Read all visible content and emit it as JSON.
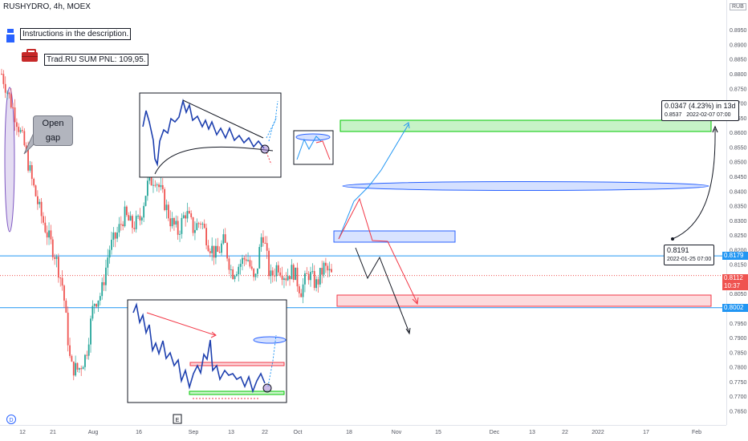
{
  "header": {
    "symbol_line": "RUSHYDRO, 4h, MOEX"
  },
  "axis": {
    "currency": "RUB"
  },
  "info": {
    "instructions": "Instructions in the description.",
    "pnl": "Trad.RU SUM PNL: 109,95."
  },
  "annotations": {
    "open_gap": "Open gap",
    "measure_line1": "0.0347 (4.23%) in 13d",
    "measure_line2_price": "0.8537",
    "measure_line2_date": "2022-02-07  07:00",
    "start_price": "0.8191",
    "start_date": "2022-01-25 07:00"
  },
  "price_tags": {
    "upper": "0.8179",
    "current": "0.8112",
    "countdown": "10:37",
    "lower": "0.8002"
  },
  "markers": {
    "d": "D",
    "e": "E"
  },
  "colors": {
    "up": "#26a69a",
    "down": "#ef5350",
    "bull_zone": "#00c800",
    "bear_zone": "#f23645",
    "blue_zone": "#2962ff",
    "level_line": "#2196f3",
    "current_line": "#ef5350"
  },
  "chart_data": {
    "type": "candlestick",
    "symbol": "RUSHYDRO",
    "timeframe": "4h",
    "exchange": "MOEX",
    "ylim": [
      0.7635,
      0.8975
    ],
    "y_ticks": [
      "0.8950",
      "0.8900",
      "0.8850",
      "0.8800",
      "0.8750",
      "0.8700",
      "0.8650",
      "0.8600",
      "0.8550",
      "0.8500",
      "0.8450",
      "0.8400",
      "0.8350",
      "0.8300",
      "0.8250",
      "0.8200",
      "0.8150",
      "0.8100",
      "0.8050",
      "0.8000",
      "0.7950",
      "0.7900",
      "0.7850",
      "0.7800",
      "0.7750",
      "0.7700",
      "0.7650"
    ],
    "x_ticks": [
      "12",
      "21",
      "Aug",
      "16",
      "Sep",
      "13",
      "22",
      "Oct",
      "18",
      "Nov",
      "15",
      "Dec",
      "13",
      "22",
      "2022",
      "17",
      "Feb"
    ],
    "approx_close_path": [
      0.88,
      0.872,
      0.864,
      0.855,
      0.843,
      0.833,
      0.825,
      0.818,
      0.807,
      0.78,
      0.779,
      0.784,
      0.802,
      0.805,
      0.82,
      0.825,
      0.832,
      0.828,
      0.83,
      0.842,
      0.845,
      0.838,
      0.83,
      0.826,
      0.833,
      0.827,
      0.83,
      0.822,
      0.818,
      0.823,
      0.812,
      0.815,
      0.818,
      0.808,
      0.827,
      0.81,
      0.815,
      0.811,
      0.813,
      0.806,
      0.812,
      0.808,
      0.814,
      0.8112
    ],
    "levels": {
      "upper": 0.8179,
      "current": 0.8112,
      "lower": 0.8002
    },
    "zones": [
      {
        "kind": "target",
        "from": 0.8537,
        "to": 0.8507
      },
      {
        "kind": "resistance",
        "from": 0.8207,
        "to": 0.818
      },
      {
        "kind": "support",
        "from": 0.8005,
        "to": 0.7975
      },
      {
        "kind": "ellipse",
        "center": 0.8352
      }
    ],
    "measure": {
      "change": 0.0347,
      "percent": 4.23,
      "duration": "13d",
      "from": 0.8191,
      "to": 0.8537
    }
  }
}
